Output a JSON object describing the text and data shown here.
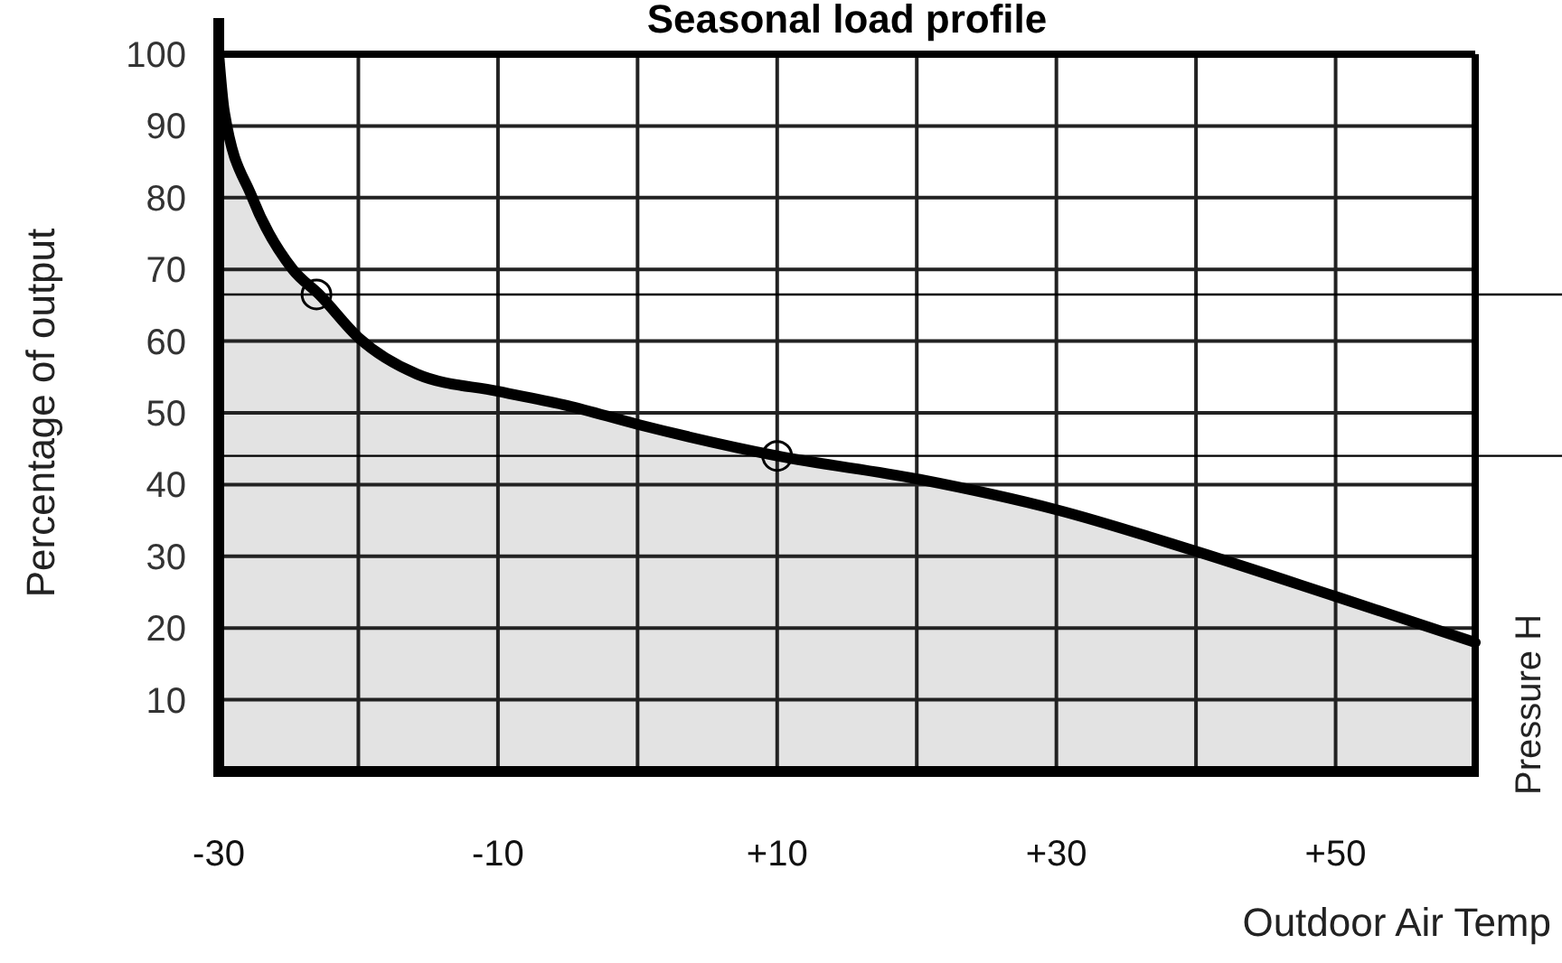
{
  "chart_data": {
    "type": "area",
    "title": "Seasonal load profile",
    "xlabel": "Outdoor Air Temp",
    "ylabel": "Percentage of output",
    "y2label": "Pressure H",
    "xlim": [
      -30,
      60
    ],
    "xticks": [
      {
        "value": -30,
        "label": "-30"
      },
      {
        "value": -20,
        "label": null
      },
      {
        "value": -10,
        "label": "-10"
      },
      {
        "value": 0,
        "label": null
      },
      {
        "value": 10,
        "label": "+10"
      },
      {
        "value": 20,
        "label": null
      },
      {
        "value": 30,
        "label": "+30"
      },
      {
        "value": 40,
        "label": null
      },
      {
        "value": 50,
        "label": "+50"
      },
      {
        "value": 60,
        "label": null
      }
    ],
    "ylim": [
      0,
      100
    ],
    "yticks": [
      10,
      20,
      30,
      40,
      50,
      60,
      70,
      80,
      90,
      100
    ],
    "grid": true,
    "series": [
      {
        "color": "#e3e3e3",
        "x": [
          -30,
          -29.6,
          -27.6,
          -24.7,
          -22.8,
          -20,
          -15.8,
          -10,
          -5,
          0,
          10,
          20,
          30,
          40,
          50,
          60
        ],
        "values": [
          100,
          92,
          80,
          70,
          66.5,
          60.5,
          55.4,
          53,
          51,
          48.4,
          44,
          40.8,
          36.5,
          30.7,
          24.4,
          18
        ]
      },
      {
        "type": "scatter",
        "color": "#000000",
        "marker": "circle",
        "x": [
          -23,
          10
        ],
        "values": [
          66.5,
          44
        ]
      }
    ],
    "ref_lines": [
      {
        "axis": "y",
        "value": 66.5,
        "color": "#000000"
      },
      {
        "axis": "y",
        "value": 44,
        "color": "#000000"
      }
    ]
  }
}
